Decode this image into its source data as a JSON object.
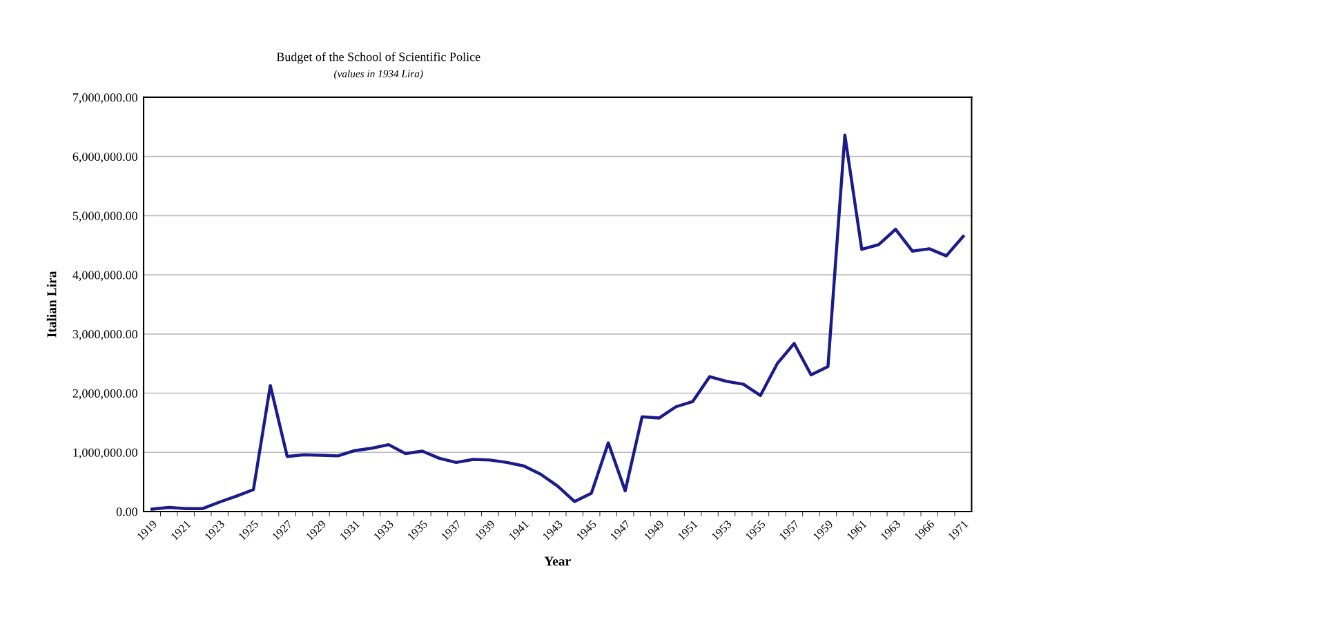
{
  "chart_data": {
    "type": "line",
    "title": "Budget of the School of Scientific Police",
    "subtitle": "(values in 1934 Lira)",
    "xlabel": "Year",
    "ylabel": "Italian Lira",
    "categories": [
      "1919",
      null,
      "1921",
      null,
      "1923",
      null,
      "1925",
      null,
      "1927",
      null,
      "1929",
      null,
      "1931",
      null,
      "1933",
      null,
      "1935",
      null,
      "1937",
      null,
      "1939",
      null,
      "1941",
      null,
      "1943",
      null,
      "1945",
      null,
      "1947",
      null,
      "1949",
      null,
      "1951",
      null,
      "1953",
      null,
      "1955",
      null,
      "1957",
      null,
      "1959",
      null,
      "1961",
      null,
      "1963",
      null,
      "1966",
      null,
      "1971"
    ],
    "series": [
      {
        "color": "#1b1b8a",
        "values": [
          40000,
          70000,
          50000,
          50000,
          160000,
          260000,
          370000,
          2130000,
          930000,
          960000,
          950000,
          940000,
          1030000,
          1070000,
          1130000,
          980000,
          1020000,
          900000,
          830000,
          880000,
          870000,
          830000,
          770000,
          630000,
          430000,
          170000,
          310000,
          1160000,
          350000,
          1600000,
          1580000,
          1770000,
          1860000,
          2280000,
          2200000,
          2150000,
          1960000,
          2500000,
          2840000,
          2310000,
          2450000,
          6360000,
          4430000,
          4510000,
          4770000,
          4400000,
          4440000,
          4320000,
          4650000
        ]
      }
    ],
    "ylim": [
      0,
      7000000
    ],
    "yticks": [
      {
        "value": 0,
        "label": "0.00"
      },
      {
        "value": 1000000,
        "label": "1,000,000.00"
      },
      {
        "value": 2000000,
        "label": "2,000,000.00"
      },
      {
        "value": 3000000,
        "label": "3,000,000.00"
      },
      {
        "value": 4000000,
        "label": "4,000,000.00"
      },
      {
        "value": 5000000,
        "label": "5,000,000.00"
      },
      {
        "value": 6000000,
        "label": "6,000,000.00"
      },
      {
        "value": 7000000,
        "label": "7,000,000.00"
      }
    ],
    "grid": "y",
    "line_style": "solid",
    "marker": "none"
  }
}
